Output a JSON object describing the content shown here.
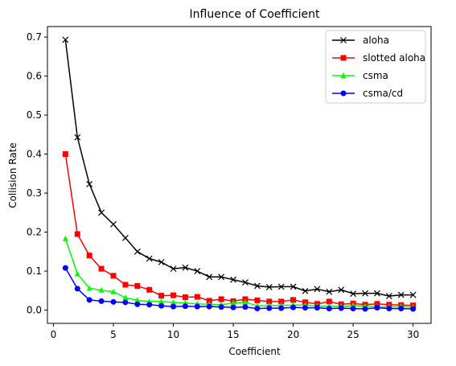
{
  "chart_data": {
    "type": "line",
    "title": "Influence of Coefficient",
    "xlabel": "Coefficient",
    "ylabel": "Collision Rate",
    "xlim": [
      -0.5,
      31.5
    ],
    "ylim": [
      -0.034,
      0.727
    ],
    "x_ticks": [
      0,
      5,
      10,
      15,
      20,
      25,
      30
    ],
    "y_ticks": [
      0.0,
      0.1,
      0.2,
      0.3,
      0.4,
      0.5,
      0.6,
      0.7
    ],
    "x_tick_labels": [
      "0",
      "5",
      "10",
      "15",
      "20",
      "25",
      "30"
    ],
    "y_tick_labels": [
      "0.0",
      "0.1",
      "0.2",
      "0.3",
      "0.4",
      "0.5",
      "0.6",
      "0.7"
    ],
    "grid": false,
    "legend_position": "top-right",
    "x": [
      1,
      2,
      3,
      4,
      5,
      6,
      7,
      8,
      9,
      10,
      11,
      12,
      13,
      14,
      15,
      16,
      17,
      18,
      19,
      20,
      21,
      22,
      23,
      24,
      25,
      26,
      27,
      28,
      29,
      30
    ],
    "series": [
      {
        "name": "aloha",
        "color": "#000000",
        "marker": "x",
        "values": [
          0.693,
          0.443,
          0.323,
          0.25,
          0.22,
          0.185,
          0.15,
          0.132,
          0.123,
          0.106,
          0.109,
          0.1,
          0.085,
          0.085,
          0.078,
          0.071,
          0.062,
          0.059,
          0.06,
          0.06,
          0.049,
          0.054,
          0.047,
          0.052,
          0.042,
          0.043,
          0.043,
          0.036,
          0.039,
          0.039
        ]
      },
      {
        "name": "slotted aloha",
        "color": "#ff0000",
        "marker": "square",
        "values": [
          0.4,
          0.195,
          0.14,
          0.106,
          0.088,
          0.065,
          0.062,
          0.052,
          0.037,
          0.038,
          0.033,
          0.034,
          0.024,
          0.028,
          0.023,
          0.028,
          0.025,
          0.022,
          0.022,
          0.026,
          0.02,
          0.016,
          0.022,
          0.015,
          0.017,
          0.014,
          0.016,
          0.014,
          0.013,
          0.012
        ]
      },
      {
        "name": "csma",
        "color": "#00ff00",
        "marker": "triangle",
        "values": [
          0.183,
          0.093,
          0.056,
          0.051,
          0.047,
          0.032,
          0.025,
          0.022,
          0.022,
          0.02,
          0.018,
          0.016,
          0.015,
          0.014,
          0.018,
          0.02,
          0.011,
          0.012,
          0.012,
          0.013,
          0.013,
          0.01,
          0.01,
          0.009,
          0.012,
          0.01,
          0.008,
          0.008,
          0.009,
          0.008
        ]
      },
      {
        "name": "csma/cd",
        "color": "#0000ff",
        "marker": "circle",
        "values": [
          0.108,
          0.055,
          0.026,
          0.023,
          0.021,
          0.02,
          0.015,
          0.014,
          0.011,
          0.009,
          0.01,
          0.009,
          0.009,
          0.008,
          0.007,
          0.008,
          0.004,
          0.005,
          0.005,
          0.007,
          0.006,
          0.006,
          0.004,
          0.005,
          0.004,
          0.003,
          0.006,
          0.004,
          0.004,
          0.003
        ]
      }
    ]
  }
}
